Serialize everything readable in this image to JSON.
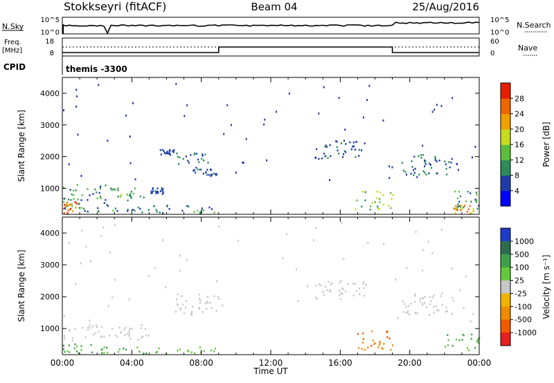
{
  "header": {
    "station": "Stokkseyri (fitACF)",
    "beam": "Beam 04",
    "date": "25/Aug/2016"
  },
  "strip": {
    "nsky_label": "N.Sky",
    "nsky_ticks": [
      "10^5",
      "10^0"
    ],
    "nsearch_label": "N.Search",
    "nsearch_ticks": [
      "10^5",
      "10^0"
    ],
    "freq_label": "Freq.",
    "freq_unit": "[MHz]",
    "freq_ticks": [
      "18",
      "8"
    ],
    "nave_label": "Nave",
    "nave_ticks": [
      "60",
      "0"
    ],
    "cpid_label": "CPID",
    "cpid_value": "themis -3300"
  },
  "chart_data": [
    {
      "type": "heatmap",
      "title": "",
      "parameter": "Power",
      "xlabel": "",
      "ylabel": "Slant Range [km]",
      "yticks": [
        1000,
        2000,
        3000,
        4000
      ],
      "ylim": [
        180,
        4500
      ],
      "xlim_hours": [
        0,
        24
      ],
      "colorbar": {
        "label": "Power [dB]",
        "ticks": [
          "4",
          "8",
          "12",
          "16",
          "20",
          "24",
          "28"
        ],
        "colors": [
          "#0000ff",
          "#1e3ca8",
          "#2d8c5a",
          "#5abe3c",
          "#c8dc1e",
          "#f0a000",
          "#f06400",
          "#e61e00"
        ]
      },
      "scatter_regions": [
        {
          "t": [
            0.0,
            2.8
          ],
          "r": [
            450,
            1100
          ],
          "v": [
            6,
            14
          ]
        },
        {
          "t": [
            2.8,
            5.0
          ],
          "r": [
            600,
            1000
          ],
          "v": [
            8,
            18
          ]
        },
        {
          "t": [
            5.0,
            5.8
          ],
          "r": [
            800,
            1000
          ],
          "v": [
            4,
            10
          ]
        },
        {
          "t": [
            0.0,
            0.8
          ],
          "r": [
            200,
            550
          ],
          "v": [
            18,
            30
          ]
        },
        {
          "t": [
            0.0,
            9.0
          ],
          "r": [
            200,
            450
          ],
          "v": [
            4,
            14
          ]
        },
        {
          "t": [
            5.6,
            6.4
          ],
          "r": [
            2000,
            2200
          ],
          "v": [
            4,
            8
          ]
        },
        {
          "t": [
            6.5,
            8.5
          ],
          "r": [
            1700,
            2100
          ],
          "v": [
            4,
            10
          ]
        },
        {
          "t": [
            7.5,
            9.0
          ],
          "r": [
            1400,
            1700
          ],
          "v": [
            4,
            10
          ]
        },
        {
          "t": [
            14.5,
            17.5
          ],
          "r": [
            1900,
            2500
          ],
          "v": [
            4,
            10
          ]
        },
        {
          "t": [
            16.8,
            19.0
          ],
          "r": [
            300,
            900
          ],
          "v": [
            10,
            20
          ]
        },
        {
          "t": [
            19.5,
            22.5
          ],
          "r": [
            1400,
            2100
          ],
          "v": [
            4,
            12
          ]
        },
        {
          "t": [
            22.0,
            24.0
          ],
          "r": [
            300,
            900
          ],
          "v": [
            6,
            16
          ]
        },
        {
          "t": [
            22.5,
            24.0
          ],
          "r": [
            180,
            450
          ],
          "v": [
            18,
            28
          ]
        }
      ]
    },
    {
      "type": "heatmap",
      "title": "",
      "parameter": "Velocity",
      "xlabel": "Time UT",
      "ylabel": "Slant Range [km]",
      "yticks": [
        1000,
        2000,
        3000,
        4000
      ],
      "ylim": [
        180,
        4500
      ],
      "xlim_hours": [
        0,
        24
      ],
      "xticks": [
        "00:00",
        "04:00",
        "08:00",
        "12:00",
        "16:00",
        "20:00",
        "00:00"
      ],
      "colorbar": {
        "label": "Velocity [m s⁻¹]",
        "ticks": [
          "1000",
          "500",
          "100",
          "25",
          "-25",
          "-100",
          "-500",
          "-1000"
        ],
        "colors": [
          "#1e3cc8",
          "#2d6e50",
          "#3ca04b",
          "#64c83c",
          "#c8c8c8",
          "#f0b400",
          "#f08c00",
          "#f05a00",
          "#e61e1e"
        ]
      },
      "scatter_regions": [
        {
          "t": [
            0.0,
            5.0
          ],
          "r": [
            600,
            1100
          ],
          "v": [
            -10,
            10
          ]
        },
        {
          "t": [
            0.0,
            2.5
          ],
          "r": [
            200,
            500
          ],
          "v": [
            60,
            200
          ]
        },
        {
          "t": [
            2.5,
            9.0
          ],
          "r": [
            200,
            400
          ],
          "v": [
            30,
            120
          ]
        },
        {
          "t": [
            6.5,
            9.0
          ],
          "r": [
            1400,
            2100
          ],
          "v": [
            -10,
            10
          ]
        },
        {
          "t": [
            14.5,
            17.5
          ],
          "r": [
            1900,
            2500
          ],
          "v": [
            -10,
            10
          ]
        },
        {
          "t": [
            16.8,
            19.0
          ],
          "r": [
            300,
            900
          ],
          "v": [
            -600,
            -100
          ]
        },
        {
          "t": [
            19.5,
            22.5
          ],
          "r": [
            1400,
            2100
          ],
          "v": [
            -10,
            10
          ]
        },
        {
          "t": [
            22.0,
            24.0
          ],
          "r": [
            300,
            800
          ],
          "v": [
            40,
            150
          ]
        }
      ]
    }
  ]
}
